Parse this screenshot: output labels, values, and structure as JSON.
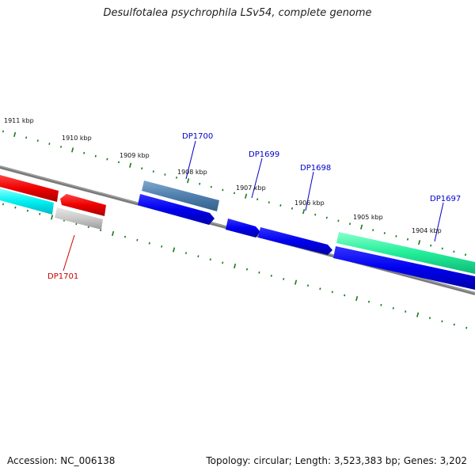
{
  "title": "Desulfotalea psychrophila LSv54, complete genome",
  "footer": {
    "accession": "Accession: NC_006138",
    "summary": "Topology: circular; Length: 3,523,383 bp; Genes: 3,202"
  },
  "scale_labels": [
    "1911 kbp",
    "1910 kbp",
    "1909 kbp",
    "1908 kbp",
    "1907 kbp",
    "1906 kbp",
    "1905 kbp",
    "1904 kbp"
  ],
  "gene_labels": [
    {
      "text": "DP1700",
      "color": "#0000cc"
    },
    {
      "text": "DP1699",
      "color": "#0000cc"
    },
    {
      "text": "DP1698",
      "color": "#0000cc"
    },
    {
      "text": "DP1697",
      "color": "#0000cc"
    },
    {
      "text": "DP1701",
      "color": "#cc0000"
    }
  ],
  "colors": {
    "backbone": "#808080",
    "tick": "#1a7a1a",
    "forward_gene": "#0000ee",
    "reverse_gene": "#ee0000"
  }
}
